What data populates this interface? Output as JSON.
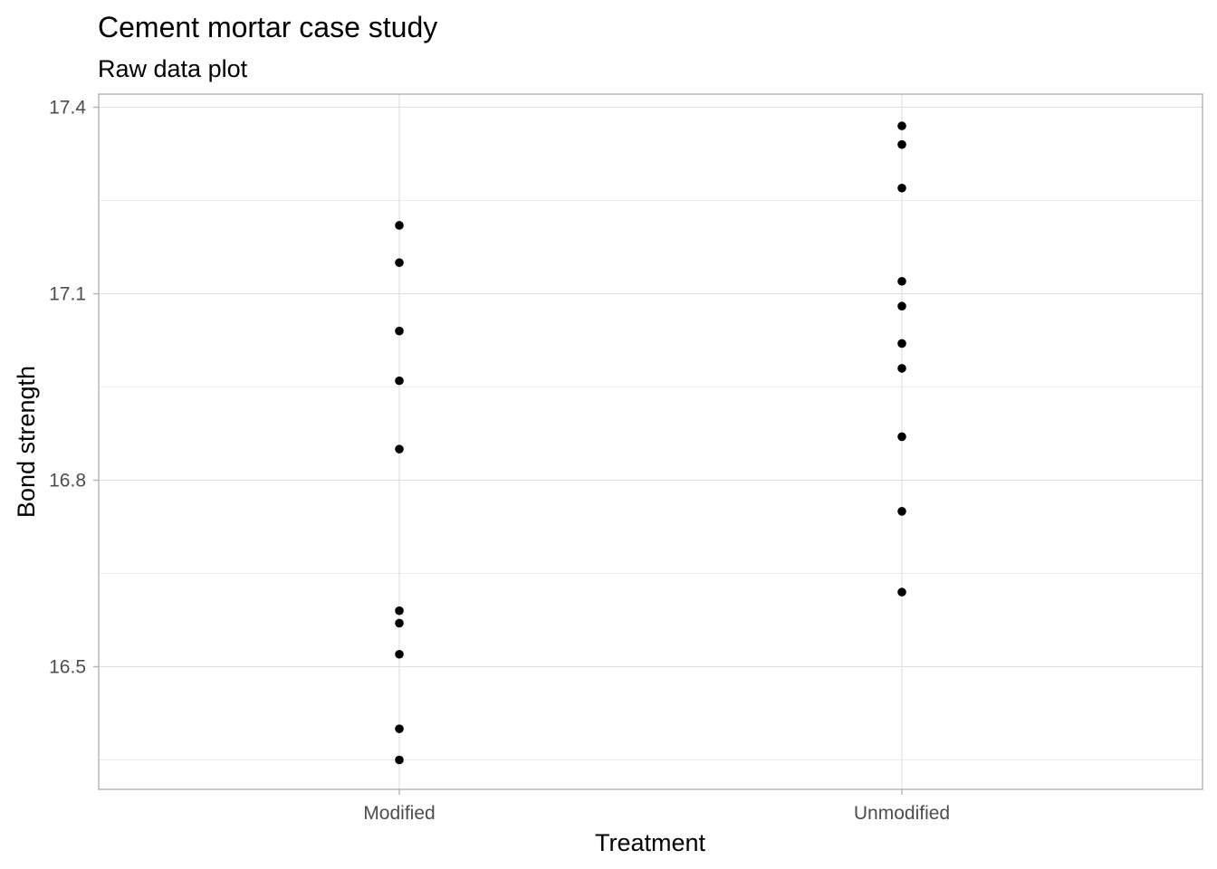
{
  "chart_data": {
    "type": "scatter",
    "title": "Cement mortar case study",
    "subtitle": "Raw data plot",
    "xlabel": "Treatment",
    "ylabel": "Bond strength",
    "categories": [
      "Modified",
      "Unmodified"
    ],
    "y_ticks": [
      16.5,
      16.8,
      17.1,
      17.4
    ],
    "y_tick_labels": [
      "16.5",
      "16.8",
      "17.1",
      "17.4"
    ],
    "ylim": [
      16.3,
      17.42
    ],
    "grid": true,
    "points": [
      {
        "x": "Modified",
        "y": 17.21
      },
      {
        "x": "Modified",
        "y": 17.15
      },
      {
        "x": "Modified",
        "y": 17.04
      },
      {
        "x": "Modified",
        "y": 16.96
      },
      {
        "x": "Modified",
        "y": 16.85
      },
      {
        "x": "Modified",
        "y": 16.59
      },
      {
        "x": "Modified",
        "y": 16.57
      },
      {
        "x": "Modified",
        "y": 16.52
      },
      {
        "x": "Modified",
        "y": 16.4
      },
      {
        "x": "Modified",
        "y": 16.35
      },
      {
        "x": "Unmodified",
        "y": 17.37
      },
      {
        "x": "Unmodified",
        "y": 17.34
      },
      {
        "x": "Unmodified",
        "y": 17.27
      },
      {
        "x": "Unmodified",
        "y": 17.12
      },
      {
        "x": "Unmodified",
        "y": 17.08
      },
      {
        "x": "Unmodified",
        "y": 17.02
      },
      {
        "x": "Unmodified",
        "y": 16.98
      },
      {
        "x": "Unmodified",
        "y": 16.87
      },
      {
        "x": "Unmodified",
        "y": 16.75
      },
      {
        "x": "Unmodified",
        "y": 16.62
      }
    ],
    "point_color": "#000000"
  }
}
